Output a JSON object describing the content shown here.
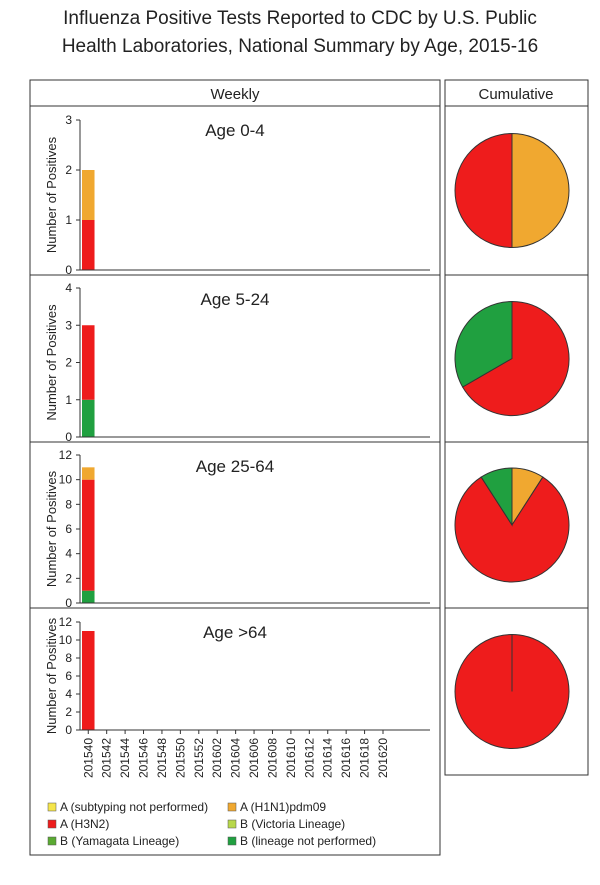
{
  "title": [
    "Influenza Positive Tests Reported to CDC by U.S. Public",
    "Health Laboratories, National Summary by Age, 2015-16"
  ],
  "weekly_header": "Weekly",
  "cumulative_header": "Cumulative",
  "legend": [
    {
      "name": "A (subtyping not performed)",
      "color": "#f5e54a"
    },
    {
      "name": "A (H1N1)pdm09",
      "color": "#f0a830"
    },
    {
      "name": "A (H3N2)",
      "color": "#ee1c1c"
    },
    {
      "name": "B (Victoria Lineage)",
      "color": "#b8d84a"
    },
    {
      "name": "B (Yamagata Lineage)",
      "color": "#5aaa32"
    },
    {
      "name": "B (lineage not performed)",
      "color": "#20a040"
    }
  ],
  "chart_data": [
    {
      "type": "bar",
      "title": "Age 0-4",
      "ylabel": "Number of Positives",
      "ylim": [
        0,
        3
      ],
      "yticks": [
        0,
        1,
        2,
        3
      ],
      "series": [
        {
          "name": "A (H3N2)",
          "color": "#ee1c1c",
          "values": [
            1,
            0,
            0,
            0,
            0,
            0,
            0,
            0,
            0,
            0,
            0,
            0,
            0,
            0,
            0,
            0,
            0,
            0,
            0,
            0,
            0
          ]
        },
        {
          "name": "A (H1N1)pdm09",
          "color": "#f0a830",
          "values": [
            1,
            0,
            0,
            0,
            0,
            0,
            0,
            0,
            0,
            0,
            0,
            0,
            0,
            0,
            0,
            0,
            0,
            0,
            0,
            0,
            0
          ]
        }
      ]
    },
    {
      "type": "bar",
      "title": "Age 5-24",
      "ylabel": "Number of Positives",
      "ylim": [
        0,
        4
      ],
      "yticks": [
        0,
        1,
        2,
        3,
        4
      ],
      "series": [
        {
          "name": "B (lineage not performed)",
          "color": "#20a040",
          "values": [
            1,
            0,
            0,
            0,
            0,
            0,
            0,
            0,
            0,
            0,
            0,
            0,
            0,
            0,
            0,
            0,
            0,
            0,
            0,
            0,
            0
          ]
        },
        {
          "name": "A (H3N2)",
          "color": "#ee1c1c",
          "values": [
            2,
            0,
            0,
            0,
            0,
            0,
            0,
            0,
            0,
            0,
            0,
            0,
            0,
            0,
            0,
            0,
            0,
            0,
            0,
            0,
            0
          ]
        }
      ]
    },
    {
      "type": "bar",
      "title": "Age 25-64",
      "ylabel": "Number of Positives",
      "ylim": [
        0,
        12
      ],
      "yticks": [
        0,
        2,
        4,
        6,
        8,
        10,
        12
      ],
      "series": [
        {
          "name": "B (lineage not performed)",
          "color": "#20a040",
          "values": [
            1,
            0,
            0,
            0,
            0,
            0,
            0,
            0,
            0,
            0,
            0,
            0,
            0,
            0,
            0,
            0,
            0,
            0,
            0,
            0,
            0
          ]
        },
        {
          "name": "A (H3N2)",
          "color": "#ee1c1c",
          "values": [
            9,
            0,
            0,
            0,
            0,
            0,
            0,
            0,
            0,
            0,
            0,
            0,
            0,
            0,
            0,
            0,
            0,
            0,
            0,
            0,
            0
          ]
        },
        {
          "name": "A (H1N1)pdm09",
          "color": "#f0a830",
          "values": [
            1,
            0,
            0,
            0,
            0,
            0,
            0,
            0,
            0,
            0,
            0,
            0,
            0,
            0,
            0,
            0,
            0,
            0,
            0,
            0,
            0
          ]
        }
      ]
    },
    {
      "type": "bar",
      "title": "Age >64",
      "ylabel": "Number of Positives",
      "ylim": [
        0,
        12
      ],
      "yticks": [
        0,
        2,
        4,
        6,
        8,
        10,
        12
      ],
      "categories": [
        "201540",
        "201542",
        "201544",
        "201546",
        "201548",
        "201550",
        "201552",
        "201602",
        "201604",
        "201606",
        "201608",
        "201610",
        "201612",
        "201614",
        "201616",
        "201618",
        "201620"
      ],
      "series": [
        {
          "name": "A (H3N2)",
          "color": "#ee1c1c",
          "values": [
            11,
            0,
            0,
            0,
            0,
            0,
            0,
            0,
            0,
            0,
            0,
            0,
            0,
            0,
            0,
            0,
            0
          ]
        }
      ]
    },
    {
      "type": "pie",
      "values": [
        1,
        1
      ],
      "colors": [
        "#f0a830",
        "#ee1c1c"
      ]
    },
    {
      "type": "pie",
      "values": [
        2,
        1
      ],
      "colors": [
        "#ee1c1c",
        "#20a040"
      ]
    },
    {
      "type": "pie",
      "values": [
        1,
        9,
        1
      ],
      "colors": [
        "#f0a830",
        "#ee1c1c",
        "#20a040"
      ]
    },
    {
      "type": "pie",
      "values": [
        11
      ],
      "colors": [
        "#ee1c1c"
      ]
    }
  ]
}
